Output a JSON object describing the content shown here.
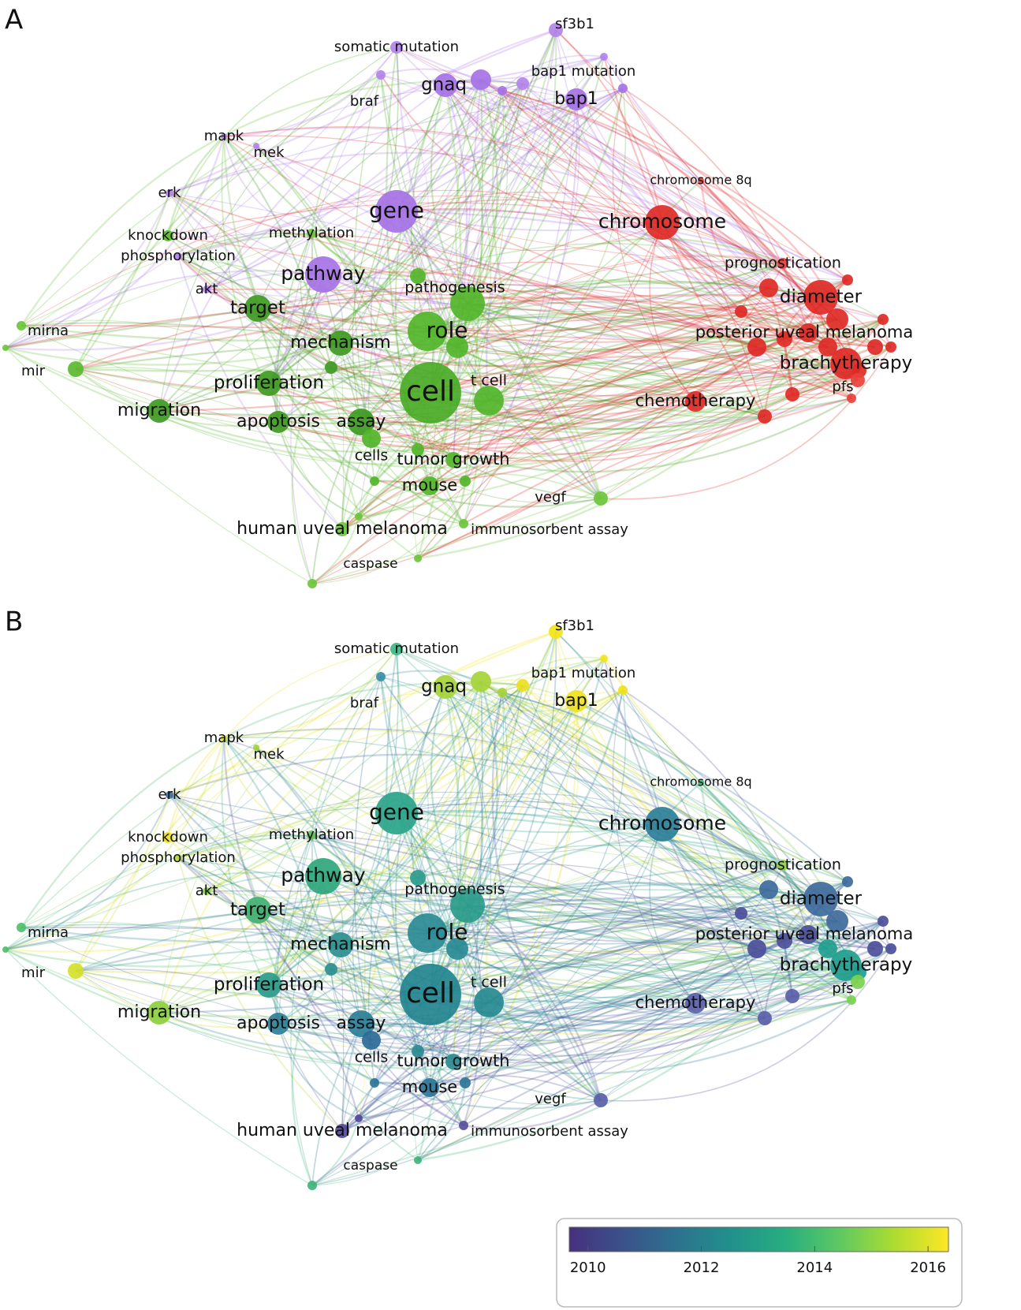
{
  "panels": [
    {
      "label": "A",
      "nodes": [
        {
          "label": "somatic mutation",
          "color": "#b383ea"
        },
        {
          "label": "sf3b1",
          "color": "#b383ea"
        },
        {
          "label": "gnaq",
          "color": "#a672e6"
        },
        {
          "label": "bap1 mutation",
          "color": "#b383ea"
        },
        {
          "label": "bap1",
          "color": "#a672e6"
        },
        {
          "label": "braf",
          "color": "#b383ea"
        },
        {
          "label": "mapk",
          "color": "#b383ea"
        },
        {
          "label": "mek",
          "color": "#b383ea"
        },
        {
          "label": "erk",
          "color": "#b383ea"
        },
        {
          "label": "gene",
          "color": "#a672e6"
        },
        {
          "label": "chromosome 8q",
          "color": "#e8403a"
        },
        {
          "label": "chromosome",
          "color": "#de2a26"
        },
        {
          "label": "methylation",
          "color": "#6cc63c"
        },
        {
          "label": "knockdown",
          "color": "#5cb830"
        },
        {
          "label": "phosphorylation",
          "color": "#b383ea"
        },
        {
          "label": "pathway",
          "color": "#a672e6"
        },
        {
          "label": "prognostication",
          "color": "#e8403a"
        },
        {
          "label": "pathogenesis",
          "color": "#52b52a"
        },
        {
          "label": "akt",
          "color": "#b383ea"
        },
        {
          "label": "target",
          "color": "#3e9a22"
        },
        {
          "label": "diameter",
          "color": "#de2a26"
        },
        {
          "label": "mirna",
          "color": "#6cc63c"
        },
        {
          "label": "role",
          "color": "#52b52a"
        },
        {
          "label": "posterior uveal melanoma",
          "color": "#de2a26"
        },
        {
          "label": "mechanism",
          "color": "#3e9a22"
        },
        {
          "label": "brachytherapy",
          "color": "#de2a26"
        },
        {
          "label": "mir",
          "color": "#5cb830"
        },
        {
          "label": "proliferation",
          "color": "#3e9a22"
        },
        {
          "label": "t cell",
          "color": "#52b52a"
        },
        {
          "label": "cell",
          "color": "#4aab26"
        },
        {
          "label": "pfs",
          "color": "#e8403a"
        },
        {
          "label": "chemotherapy",
          "color": "#de2a26"
        },
        {
          "label": "migration",
          "color": "#3e9a22"
        },
        {
          "label": "apoptosis",
          "color": "#3e9a22"
        },
        {
          "label": "assay",
          "color": "#3e9a22"
        },
        {
          "label": "cells",
          "color": "#52b52a"
        },
        {
          "label": "tumor growth",
          "color": "#52b52a"
        },
        {
          "label": "mouse",
          "color": "#52b52a"
        },
        {
          "label": "vegf",
          "color": "#6cc63c"
        },
        {
          "label": "human uveal melanoma",
          "color": "#6cc63c"
        },
        {
          "label": "immunosorbent assay",
          "color": "#6cc63c"
        },
        {
          "label": "caspase",
          "color": "#6cc63c"
        }
      ]
    },
    {
      "label": "B",
      "nodes": [
        {
          "label": "somatic mutation",
          "color": "#3db886"
        },
        {
          "label": "sf3b1",
          "color": "#f2e51b"
        },
        {
          "label": "gnaq",
          "color": "#a6d43a"
        },
        {
          "label": "bap1 mutation",
          "color": "#ecdf20"
        },
        {
          "label": "bap1",
          "color": "#eee21e"
        },
        {
          "label": "braf",
          "color": "#3a8fa8"
        },
        {
          "label": "mapk",
          "color": "#cfdd2c"
        },
        {
          "label": "mek",
          "color": "#9fd23c"
        },
        {
          "label": "erk",
          "color": "#3f6fa0"
        },
        {
          "label": "gene",
          "color": "#2aa48a"
        },
        {
          "label": "chromosome 8q",
          "color": "#3fb07a"
        },
        {
          "label": "chromosome",
          "color": "#2d7f98"
        },
        {
          "label": "methylation",
          "color": "#5fc060"
        },
        {
          "label": "knockdown",
          "color": "#f0e02a"
        },
        {
          "label": "phosphorylation",
          "color": "#b9d838"
        },
        {
          "label": "pathway",
          "color": "#2fa67c"
        },
        {
          "label": "prognostication",
          "color": "#8fd045"
        },
        {
          "label": "pathogenesis",
          "color": "#2a9b8a"
        },
        {
          "label": "akt",
          "color": "#7ccc4a"
        },
        {
          "label": "target",
          "color": "#40b070"
        },
        {
          "label": "diameter",
          "color": "#3e6a9c"
        },
        {
          "label": "mirna",
          "color": "#4fc06a"
        },
        {
          "label": "role",
          "color": "#2a8a95"
        },
        {
          "label": "posterior uveal melanoma",
          "color": "#4c4f9a"
        },
        {
          "label": "mechanism",
          "color": "#2e8f90"
        },
        {
          "label": "brachytherapy",
          "color": "#1f9e8e"
        },
        {
          "label": "mir",
          "color": "#d4e02a"
        },
        {
          "label": "proliferation",
          "color": "#2a9b8a"
        },
        {
          "label": "t cell",
          "color": "#268a90"
        },
        {
          "label": "cell",
          "color": "#22848f"
        },
        {
          "label": "pfs",
          "color": "#7ad150"
        },
        {
          "label": "chemotherapy",
          "color": "#5a5fa8"
        },
        {
          "label": "migration",
          "color": "#8ccf40"
        },
        {
          "label": "apoptosis",
          "color": "#2e7f98"
        },
        {
          "label": "assay",
          "color": "#2d7f98"
        },
        {
          "label": "cells",
          "color": "#2e6a98"
        },
        {
          "label": "tumor growth",
          "color": "#2a8a90"
        },
        {
          "label": "mouse",
          "color": "#2e7598"
        },
        {
          "label": "vegf",
          "color": "#5a5fa8"
        },
        {
          "label": "human uveal melanoma",
          "color": "#54489a"
        },
        {
          "label": "immunosorbent assay",
          "color": "#5a4fa0"
        },
        {
          "label": "caspase",
          "color": "#3fb37a"
        }
      ]
    }
  ],
  "colorbar": {
    "range": [
      2009.67,
      2016.36
    ],
    "ticks": [
      2010,
      2012,
      2014,
      2016
    ],
    "colors": [
      "#46307e",
      "#3b528b",
      "#2c728e",
      "#21918c",
      "#28ae80",
      "#5ec962",
      "#addc30",
      "#fde725"
    ]
  }
}
